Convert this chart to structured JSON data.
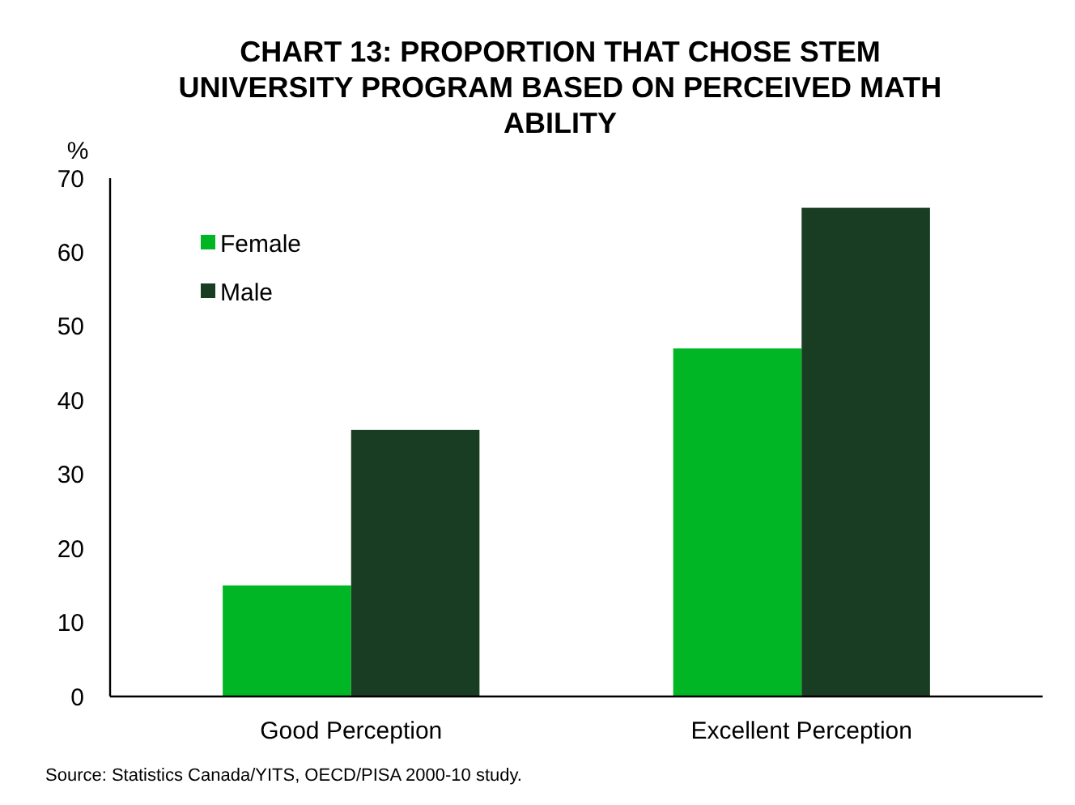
{
  "chart_data": {
    "type": "bar",
    "title": "CHART 13: PROPORTION THAT CHOSE STEM UNIVERSITY PROGRAM BASED ON PERCEIVED MATH ABILITY",
    "ylabel": "%",
    "categories": [
      "Good Perception",
      "Excellent Perception"
    ],
    "series": [
      {
        "name": "Female",
        "color": "#00b624",
        "values": [
          15,
          47
        ]
      },
      {
        "name": "Male",
        "color": "#193d23",
        "values": [
          36,
          66
        ]
      }
    ],
    "ylim": [
      0,
      70
    ],
    "yticks": [
      0,
      10,
      20,
      30,
      40,
      50,
      60,
      70
    ],
    "grid": false,
    "legend": "top left",
    "annotations": [
      "Source: Statistics Canada/YITS, OECD/PISA 2000-10 study."
    ]
  }
}
